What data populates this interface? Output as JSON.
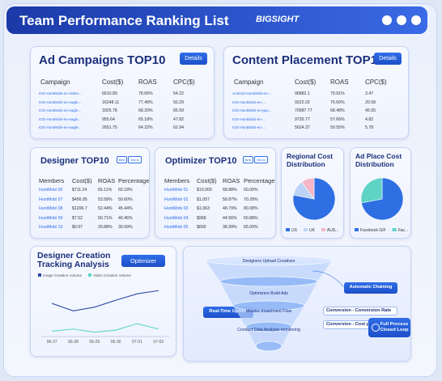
{
  "header": {
    "title": "Team Performance Ranking List",
    "logo": "BIGSIGHT"
  },
  "ad_campaigns": {
    "title": "Ad Campaigns TOP10",
    "button": "Details",
    "columns": [
      "Campaign",
      "Cost($)",
      "ROAS",
      "CPC($)"
    ],
    "rows": [
      [
        "IOS-HuntMobi-en-Alden...",
        "6610.89",
        "78.66%",
        "54.22"
      ],
      [
        "IOS-HuntMobi-en-eagle...",
        "16248.11",
        "77.49%",
        "50.29"
      ],
      [
        "IOS-HuntMobi-en-eagle...",
        "1825.78",
        "68.20%",
        "65.59"
      ],
      [
        "IOS-HuntMobi-en-eagle...",
        "955.64",
        "65.18%",
        "47.82"
      ],
      [
        "IOS-HuntMobi-en-eagle...",
        "2651.75",
        "64.22%",
        "62.94"
      ]
    ]
  },
  "content_placement": {
    "title": "Content Placement TOP10",
    "button": "Details",
    "columns": [
      "Campaign",
      "Cost($)",
      "ROAS",
      "CPC($)"
    ],
    "rows": [
      [
        "Android-HuntMobi-en-...",
        "96882.1",
        "79.91%",
        "3.47"
      ],
      [
        "IOS-HuntMobi-en-...",
        "9222.02",
        "76.60%",
        "20.58"
      ],
      [
        "IOS-HuntMobi-en-ppc...",
        "70687.77",
        "68.48%",
        "45.55"
      ],
      [
        "IOS-HuntMobi-en-...",
        "9735.77",
        "57.66%",
        "4.82"
      ],
      [
        "IOS-HuntMobi-en-...",
        "5624.37",
        "50.55%",
        "5.78"
      ]
    ]
  },
  "designer": {
    "title": "Designer  TOP10",
    "buttons": [
      "Best",
      "Worst"
    ],
    "columns": [
      "Members",
      "Cost($)",
      "ROAS",
      "Percentage"
    ],
    "rows": [
      [
        "HuntMobi 06",
        "$711.24",
        "65.11%",
        "60.18%"
      ],
      [
        "HuntMobi 07",
        "$456.95",
        "53.58%",
        "50.60%"
      ],
      [
        "HuntMobi 08",
        "$1206.7",
        "52.44%",
        "45.44%"
      ],
      [
        "HuntMobi 09",
        "$7.52",
        "50.71%",
        "40.46%"
      ],
      [
        "HuntMobi 10",
        "$0.07",
        "29.88%",
        "30.69%"
      ]
    ]
  },
  "optimizer": {
    "title": "Optimizer  TOP10",
    "buttons": [
      "Best",
      "Worst"
    ],
    "columns": [
      "Members",
      "Cost($)",
      "ROAS",
      "Percentage"
    ],
    "rows": [
      [
        "HuntMobi 01",
        "$10,000",
        "68.88%",
        "60.00%"
      ],
      [
        "HuntMobi 02",
        "$1,057",
        "58.87%",
        "70.28%"
      ],
      [
        "HuntMobi 03",
        "$1,063",
        "48.79%",
        "80.08%"
      ],
      [
        "HuntMobi 04",
        "$968",
        "44.56%",
        "60.88%"
      ],
      [
        "HuntMobi 05",
        "$600",
        "38.99%",
        "65.00%"
      ]
    ]
  },
  "tracking": {
    "button": "Optimizer"
  },
  "chart_data": [
    {
      "type": "pie",
      "title": "Regional Cost Distribution",
      "categories": [
        "US",
        "UK",
        "AUS..."
      ],
      "values": [
        78,
        12,
        10
      ],
      "colors": [
        "#2f6fe4",
        "#bcd3f7",
        "#f4b6c8"
      ]
    },
    {
      "type": "pie",
      "title": "Ad Place Cost Distribution",
      "categories": [
        "Facebook GIF",
        "Fac..."
      ],
      "values": [
        72,
        28
      ],
      "colors": [
        "#2f6fe4",
        "#5fd3c6"
      ]
    },
    {
      "type": "line",
      "title": "Designer Creation Tracking Analysis",
      "x": [
        "06-27",
        "06-28",
        "06-29",
        "06-30",
        "07-01",
        "07-02"
      ],
      "series": [
        {
          "name": "Image Creation Volume",
          "color": "#2c4aa3",
          "values": [
            62,
            48,
            55,
            68,
            80,
            86
          ]
        },
        {
          "name": "Video Creation Volume",
          "color": "#5cd6c8",
          "values": [
            10,
            14,
            8,
            12,
            24,
            14
          ]
        }
      ],
      "ylim": [
        0,
        100
      ]
    }
  ],
  "funnel": {
    "steps": [
      "Designers Upload Creatives",
      "Optimizers Build Ads",
      "Monitor Investment Flow",
      "Conduct Data Analysis monitoring"
    ],
    "tags": [
      "Automatic Chaining",
      "Real-Time Update",
      "Conversion - Conversion Rate",
      "Conversion - Cost p...",
      "Full Process Closed Loop"
    ]
  }
}
